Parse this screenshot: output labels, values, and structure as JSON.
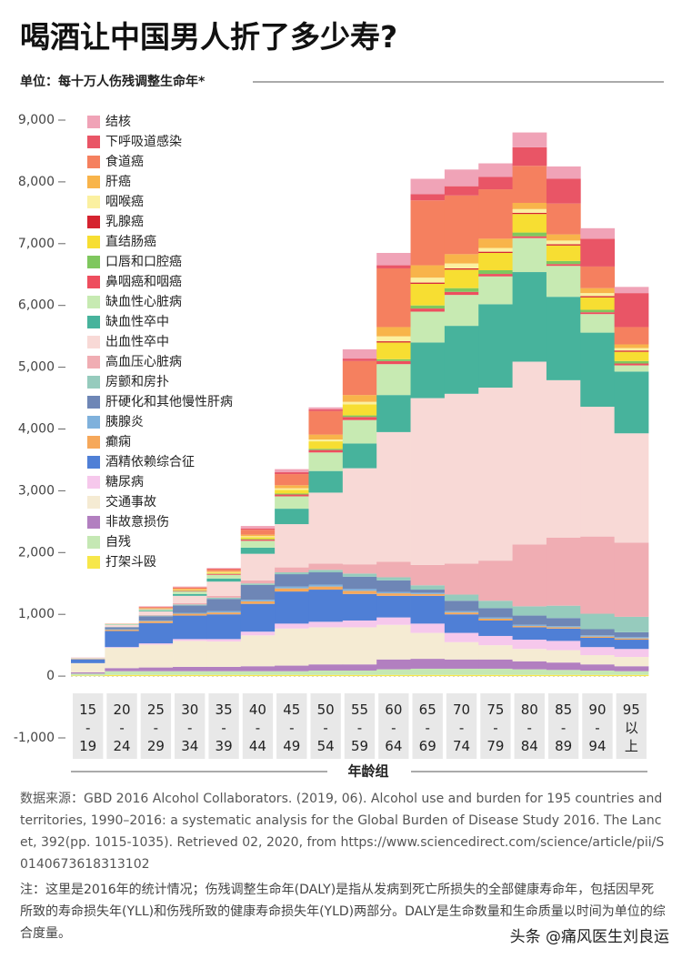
{
  "chart_data": {
    "type": "bar",
    "stacked": true,
    "title": "喝酒让中国男人折了多少寿?",
    "subtitle": "单位：每十万人伤残调整生命年*",
    "x_label": "年龄组",
    "categories": [
      "15-19",
      "20-24",
      "25-29",
      "30-34",
      "35-39",
      "40-44",
      "45-49",
      "50-54",
      "55-59",
      "60-64",
      "65-69",
      "70-74",
      "75-79",
      "80-84",
      "85-89",
      "90-94",
      "95以上"
    ],
    "ylim": [
      -1000,
      9000
    ],
    "yticks": [
      {
        "value": -1000,
        "label": "-1,000"
      },
      0,
      {
        "value": 1000,
        "label": "1,000"
      },
      {
        "value": 2000,
        "label": "2,000"
      },
      {
        "value": 3000,
        "label": "3,000"
      },
      {
        "value": 4000,
        "label": "4,000"
      },
      {
        "value": 5000,
        "label": "5,000"
      },
      {
        "value": 6000,
        "label": "6,000"
      },
      {
        "value": 7000,
        "label": "7,000"
      },
      {
        "value": 8000,
        "label": "8,000"
      },
      {
        "value": 9000,
        "label": "9,000"
      }
    ],
    "grid": false,
    "series": [
      {
        "name": "打架斗殴",
        "color": "#f7e74a",
        "values": [
          10,
          20,
          20,
          20,
          20,
          20,
          20,
          20,
          20,
          20,
          20,
          20,
          20,
          20,
          20,
          20,
          20
        ]
      },
      {
        "name": "自残",
        "color": "#c5e8b4",
        "values": [
          30,
          60,
          60,
          60,
          60,
          60,
          60,
          70,
          70,
          90,
          100,
          100,
          100,
          90,
          80,
          70,
          60
        ]
      },
      {
        "name": "非故意损伤",
        "color": "#b27fc0",
        "values": [
          20,
          50,
          60,
          70,
          70,
          80,
          90,
          100,
          100,
          160,
          160,
          150,
          150,
          130,
          120,
          100,
          80
        ]
      },
      {
        "name": "交通事故",
        "color": "#f5ebd3",
        "values": [
          150,
          330,
          370,
          420,
          410,
          500,
          600,
          600,
          600,
          560,
          420,
          280,
          230,
          200,
          200,
          150,
          150
        ]
      },
      {
        "name": "糖尿病",
        "color": "#f6c8ec",
        "values": [
          0,
          10,
          20,
          30,
          40,
          60,
          80,
          90,
          110,
          120,
          150,
          150,
          150,
          150,
          150,
          130,
          130
        ]
      },
      {
        "name": "酒精依赖综合征",
        "color": "#4f7fd6",
        "values": [
          60,
          260,
          330,
          380,
          400,
          450,
          520,
          520,
          430,
          350,
          450,
          300,
          250,
          200,
          200,
          150,
          150
        ]
      },
      {
        "name": "癫痫",
        "color": "#f6a85a",
        "values": [
          5,
          20,
          30,
          30,
          30,
          40,
          50,
          50,
          50,
          40,
          30,
          30,
          30,
          20,
          20,
          20,
          20
        ]
      },
      {
        "name": "胰腺炎",
        "color": "#7fb1dc",
        "values": [
          0,
          10,
          10,
          15,
          20,
          25,
          30,
          30,
          30,
          20,
          20,
          20,
          20,
          20,
          20,
          20,
          20
        ]
      },
      {
        "name": "肝硬化和其他慢性肝病",
        "color": "#6e86b6",
        "values": [
          5,
          30,
          70,
          120,
          200,
          240,
          200,
          200,
          200,
          190,
          50,
          170,
          150,
          150,
          130,
          100,
          80
        ]
      },
      {
        "name": "房颤和房扑",
        "color": "#96cbbd",
        "values": [
          0,
          5,
          10,
          15,
          20,
          25,
          30,
          40,
          50,
          50,
          70,
          100,
          120,
          150,
          200,
          250,
          250
        ]
      },
      {
        "name": "高血压心脏病",
        "color": "#f0adb3",
        "values": [
          0,
          5,
          10,
          20,
          30,
          50,
          80,
          100,
          150,
          250,
          330,
          500,
          650,
          1000,
          1100,
          1250,
          1200
        ]
      },
      {
        "name": "出血性卒中",
        "color": "#f8d9d6",
        "values": [
          10,
          30,
          60,
          120,
          230,
          430,
          700,
          1150,
          1555,
          2100,
          2700,
          2750,
          2800,
          2960,
          2550,
          2100,
          1770
        ]
      },
      {
        "name": "缺血性卒中",
        "color": "#47b39c",
        "values": [
          0,
          5,
          15,
          30,
          50,
          100,
          250,
          350,
          400,
          600,
          900,
          1100,
          1350,
          1450,
          1350,
          1200,
          1000
        ]
      },
      {
        "name": "缺血性心脏病",
        "color": "#c7eab2",
        "values": [
          5,
          10,
          20,
          40,
          60,
          110,
          200,
          300,
          380,
          500,
          500,
          500,
          450,
          550,
          500,
          300,
          100
        ]
      },
      {
        "name": "鼻咽癌和咽癌",
        "color": "#ee4e5e",
        "values": [
          0,
          0,
          5,
          10,
          15,
          20,
          30,
          40,
          50,
          50,
          50,
          50,
          40,
          30,
          30,
          30,
          30
        ]
      },
      {
        "name": "口唇和口腔癌",
        "color": "#7fc75e",
        "values": [
          0,
          0,
          0,
          5,
          5,
          10,
          15,
          20,
          25,
          30,
          50,
          60,
          60,
          60,
          50,
          40,
          40
        ]
      },
      {
        "name": "直结肠癌",
        "color": "#f7de32",
        "values": [
          0,
          0,
          5,
          10,
          15,
          30,
          60,
          120,
          180,
          270,
          350,
          300,
          280,
          300,
          250,
          200,
          150
        ]
      },
      {
        "name": "乳腺癌",
        "color": "#d5232f",
        "values": [
          0,
          0,
          0,
          0,
          0,
          0,
          0,
          0,
          0,
          20,
          20,
          20,
          20,
          20,
          20,
          20,
          20
        ]
      },
      {
        "name": "咽喉癌",
        "color": "#fbf0a0",
        "values": [
          0,
          0,
          0,
          5,
          10,
          15,
          25,
          30,
          40,
          80,
          80,
          80,
          60,
          60,
          60,
          50,
          40
        ]
      },
      {
        "name": "肝癌",
        "color": "#f8b44a",
        "values": [
          0,
          0,
          5,
          10,
          15,
          25,
          50,
          80,
          110,
          150,
          200,
          150,
          150,
          100,
          100,
          80,
          60
        ]
      },
      {
        "name": "食道癌",
        "color": "#f5805f",
        "values": [
          0,
          5,
          15,
          25,
          30,
          80,
          180,
          380,
          550,
          950,
          1050,
          950,
          800,
          600,
          500,
          350,
          280
        ]
      },
      {
        "name": "下呼吸道感染",
        "color": "#e95566",
        "values": [
          0,
          0,
          5,
          5,
          10,
          20,
          30,
          30,
          40,
          50,
          100,
          150,
          200,
          300,
          400,
          450,
          550
        ]
      },
      {
        "name": "结核",
        "color": "#f0a3b7",
        "values": [
          5,
          0,
          10,
          10,
          10,
          40,
          50,
          30,
          150,
          200,
          250,
          270,
          220,
          240,
          200,
          170,
          100
        ]
      }
    ],
    "source": "数据来源：GBD 2016 Alcohol Collaborators. (2019, 06). Alcohol use and burden for 195 countries and territories, 1990–2016: a systematic analysis for the Global Burden of Disease Study 2016. The Lancet, 392(pp. 1015-1035). Retrieved 02, 2020, from https://www.sciencedirect.com/science/article/pii/S0140673618313102",
    "note": "注：这里是2016年的统计情况；伤残调整生命年(DALY)是指从发病到死亡所损失的全部健康寿命年，包括因早死所致的寿命损失年(YLL)和伤残所致的健康寿命损失年(YLD)两部分。DALY是生命数量和生命质量以时间为单位的综合度量。",
    "watermark": "头条 @痛风医生刘良运"
  }
}
